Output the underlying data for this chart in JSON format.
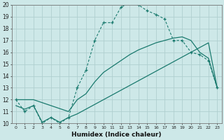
{
  "xlabel": "Humidex (Indice chaleur)",
  "xlim": [
    -0.5,
    23.5
  ],
  "ylim": [
    10,
    20
  ],
  "xticks": [
    0,
    1,
    2,
    3,
    4,
    5,
    6,
    7,
    8,
    9,
    10,
    11,
    12,
    13,
    14,
    15,
    16,
    17,
    18,
    19,
    20,
    21,
    22,
    23
  ],
  "yticks": [
    10,
    11,
    12,
    13,
    14,
    15,
    16,
    17,
    18,
    19,
    20
  ],
  "bg_color": "#cde8e8",
  "grid_color": "#b0cfcf",
  "line_color": "#1a7a6e",
  "line1_x": [
    0,
    1,
    2,
    3,
    4,
    5,
    6,
    7,
    8,
    9,
    10,
    11,
    12,
    13,
    14,
    15,
    16,
    17,
    18,
    19,
    20,
    21,
    22,
    23
  ],
  "line1_y": [
    12.0,
    11.0,
    11.5,
    10.0,
    10.5,
    10.0,
    10.5,
    13.0,
    14.5,
    17.0,
    18.5,
    18.5,
    19.8,
    20.2,
    20.0,
    19.5,
    19.2,
    18.8,
    17.0,
    17.0,
    16.0,
    15.8,
    15.3,
    13.0
  ],
  "line2_x": [
    0,
    2,
    6,
    7,
    8,
    9,
    10,
    11,
    12,
    13,
    14,
    15,
    16,
    17,
    18,
    19,
    20,
    21,
    22,
    23
  ],
  "line2_y": [
    12.0,
    12.0,
    11.0,
    12.0,
    12.5,
    13.5,
    14.3,
    14.8,
    15.3,
    15.8,
    16.2,
    16.5,
    16.8,
    17.0,
    17.2,
    17.3,
    17.0,
    16.0,
    15.5,
    13.0
  ],
  "line3_x": [
    0,
    1,
    2,
    3,
    4,
    5,
    6,
    7,
    8,
    9,
    10,
    11,
    12,
    13,
    14,
    15,
    16,
    17,
    18,
    19,
    20,
    21,
    22,
    23
  ],
  "line3_y": [
    11.5,
    11.2,
    11.5,
    10.1,
    10.5,
    10.1,
    10.5,
    10.8,
    11.2,
    11.6,
    12.0,
    12.4,
    12.8,
    13.2,
    13.6,
    14.0,
    14.4,
    14.8,
    15.2,
    15.6,
    16.0,
    16.4,
    16.8,
    13.0
  ]
}
